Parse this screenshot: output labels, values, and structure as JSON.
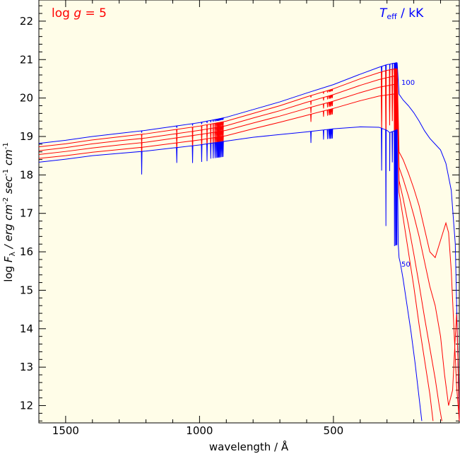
{
  "chart_data": {
    "type": "line",
    "xlabel": "wavelength / Å",
    "ylabel": {
      "prefix": "log ",
      "F": "F",
      "sub": "λ",
      "units": " / erg cm",
      "exp1": "-2",
      "mid": " sec",
      "exp2": "-1",
      "mid2": " cm",
      "exp3": "-1"
    },
    "xlim": [
      1600,
      30
    ],
    "ylim": [
      11.55,
      22.55
    ],
    "x_ticks": [
      1500,
      1000,
      500
    ],
    "y_ticks": [
      12,
      13,
      14,
      15,
      16,
      17,
      18,
      19,
      20,
      21,
      22
    ],
    "annotation_logg": {
      "prefix": "log ",
      "g": "g",
      "suffix": " = 5",
      "color": "#ff0000"
    },
    "annotation_teff": {
      "T": "T",
      "sub": "eff",
      "suffix": " / kK",
      "color": "#0000ff"
    },
    "curve_label_top": "100",
    "curve_label_bottom": "50",
    "background": "#fffde8",
    "colors": {
      "hot_and_cool": "#0000ff",
      "intermediate": "#ff0000"
    },
    "series": [
      {
        "color": "#0000ff",
        "x": [
          1600,
          1500,
          1400,
          1300,
          1200,
          1100,
          1000,
          900,
          800,
          700,
          600,
          500,
          400,
          330,
          300,
          290,
          280,
          270,
          265,
          262,
          255,
          240,
          220,
          200,
          180,
          160,
          140,
          120,
          100,
          80,
          60,
          45,
          30
        ],
        "y": [
          18.82,
          18.9,
          19.0,
          19.08,
          19.16,
          19.26,
          19.36,
          19.5,
          19.7,
          19.9,
          20.13,
          20.35,
          20.62,
          20.8,
          20.87,
          20.88,
          20.9,
          20.91,
          20.92,
          20.92,
          20.1,
          19.95,
          19.8,
          19.62,
          19.4,
          19.15,
          18.95,
          18.8,
          18.65,
          18.3,
          17.6,
          16.2,
          11.6
        ]
      },
      {
        "color": "#ff0000",
        "x": [
          1600,
          1500,
          1400,
          1300,
          1200,
          1100,
          1000,
          900,
          800,
          700,
          600,
          500,
          400,
          330,
          300,
          270,
          262,
          255,
          240,
          220,
          200,
          180,
          160,
          140,
          120,
          100,
          80,
          70,
          60,
          50,
          40,
          30
        ],
        "y": [
          18.73,
          18.81,
          18.91,
          18.99,
          19.07,
          19.17,
          19.27,
          19.4,
          19.6,
          19.8,
          20.03,
          20.24,
          20.5,
          20.66,
          20.72,
          20.76,
          20.76,
          18.6,
          18.4,
          18.05,
          17.65,
          17.2,
          16.6,
          16.0,
          15.85,
          16.3,
          16.75,
          16.5,
          15.5,
          14.0,
          12.5,
          11.6
        ]
      },
      {
        "color": "#ff0000",
        "x": [
          1600,
          1500,
          1400,
          1300,
          1200,
          1100,
          1000,
          900,
          800,
          700,
          600,
          500,
          400,
          330,
          300,
          270,
          262,
          255,
          240,
          220,
          200,
          180,
          160,
          140,
          120,
          100,
          85,
          70,
          55,
          45,
          40,
          35,
          30
        ],
        "y": [
          18.63,
          18.71,
          18.81,
          18.89,
          18.96,
          19.06,
          19.16,
          19.28,
          19.48,
          19.67,
          19.89,
          20.09,
          20.33,
          20.48,
          20.53,
          20.58,
          20.58,
          18.2,
          17.9,
          17.45,
          16.95,
          16.4,
          15.75,
          15.1,
          14.6,
          13.8,
          12.8,
          12.0,
          12.4,
          13.8,
          14.38,
          13.2,
          11.6
        ]
      },
      {
        "color": "#ff0000",
        "x": [
          1600,
          1500,
          1400,
          1300,
          1200,
          1100,
          1000,
          900,
          800,
          700,
          600,
          500,
          400,
          330,
          300,
          270,
          262,
          255,
          240,
          220,
          200,
          180,
          160,
          140,
          120,
          105,
          95
        ],
        "y": [
          18.53,
          18.61,
          18.7,
          18.78,
          18.85,
          18.95,
          19.05,
          19.16,
          19.35,
          19.53,
          19.73,
          19.92,
          20.14,
          20.28,
          20.32,
          20.36,
          20.36,
          17.85,
          17.4,
          16.7,
          15.95,
          15.15,
          14.3,
          13.5,
          12.7,
          12.0,
          11.6
        ]
      },
      {
        "color": "#ff0000",
        "x": [
          1600,
          1500,
          1400,
          1300,
          1200,
          1100,
          1000,
          900,
          800,
          700,
          600,
          500,
          400,
          330,
          300,
          270,
          262,
          255,
          240,
          220,
          200,
          180,
          160,
          140,
          128
        ],
        "y": [
          18.43,
          18.5,
          18.59,
          18.66,
          18.73,
          18.82,
          18.91,
          19.02,
          19.2,
          19.37,
          19.55,
          19.73,
          19.93,
          20.05,
          20.08,
          20.11,
          20.11,
          17.55,
          16.9,
          16.0,
          15.1,
          14.1,
          13.2,
          12.3,
          11.6
        ]
      },
      {
        "color": "#0000ff",
        "x": [
          1600,
          1500,
          1400,
          1300,
          1200,
          1100,
          1000,
          900,
          800,
          700,
          600,
          500,
          400,
          330,
          300,
          290,
          275,
          262,
          258,
          255,
          250,
          240,
          225,
          210,
          195,
          180,
          170
        ],
        "y": [
          18.33,
          18.41,
          18.5,
          18.56,
          18.62,
          18.7,
          18.78,
          18.88,
          18.98,
          19.05,
          19.12,
          19.2,
          19.25,
          19.24,
          19.16,
          19.1,
          19.14,
          19.18,
          16.2,
          15.85,
          15.7,
          15.3,
          14.6,
          13.9,
          13.1,
          12.2,
          11.6
        ]
      }
    ],
    "absorption_lines": [
      {
        "x": 1216,
        "depth": [
          0.05,
          0.1,
          0.12,
          0.14,
          0.15,
          0.6
        ]
      },
      {
        "x": 1085,
        "depth": [
          0.05,
          0.12,
          0.14,
          0.16,
          0.18,
          0.4
        ]
      },
      {
        "x": 1026,
        "depth": [
          0.05,
          0.14,
          0.16,
          0.18,
          0.2,
          0.45
        ]
      },
      {
        "x": 992,
        "depth": [
          0.05,
          0.14,
          0.16,
          0.18,
          0.2,
          0.45
        ]
      },
      {
        "x": 972,
        "depth": [
          0.05,
          0.14,
          0.16,
          0.18,
          0.2,
          0.45
        ]
      },
      {
        "x": 958,
        "depth": [
          0.05,
          0.14,
          0.16,
          0.18,
          0.2,
          0.4
        ]
      },
      {
        "x": 949,
        "depth": [
          0.05,
          0.14,
          0.16,
          0.18,
          0.2,
          0.4
        ]
      },
      {
        "x": 942,
        "depth": [
          0.05,
          0.14,
          0.16,
          0.18,
          0.2,
          0.4
        ]
      },
      {
        "x": 937,
        "depth": [
          0.05,
          0.14,
          0.16,
          0.18,
          0.2,
          0.4
        ]
      },
      {
        "x": 933,
        "depth": [
          0.05,
          0.14,
          0.16,
          0.18,
          0.2,
          0.4
        ]
      },
      {
        "x": 930,
        "depth": [
          0.05,
          0.14,
          0.16,
          0.18,
          0.2,
          0.4
        ]
      },
      {
        "x": 927,
        "depth": [
          0.05,
          0.14,
          0.16,
          0.18,
          0.2,
          0.4
        ]
      },
      {
        "x": 924,
        "depth": [
          0.05,
          0.14,
          0.16,
          0.18,
          0.2,
          0.4
        ]
      },
      {
        "x": 920,
        "depth": [
          0.05,
          0.14,
          0.16,
          0.18,
          0.2,
          0.4
        ]
      },
      {
        "x": 916,
        "depth": [
          0.05,
          0.14,
          0.16,
          0.18,
          0.2,
          0.4
        ]
      },
      {
        "x": 912,
        "depth": [
          0.05,
          0.14,
          0.16,
          0.18,
          0.2,
          0.4
        ]
      },
      {
        "x": 584,
        "depth": [
          0.0,
          0.05,
          0.1,
          0.15,
          0.2,
          0.3
        ]
      },
      {
        "x": 537,
        "depth": [
          0.0,
          0.05,
          0.08,
          0.12,
          0.15,
          0.25
        ]
      },
      {
        "x": 522,
        "depth": [
          0.0,
          0.05,
          0.08,
          0.12,
          0.15,
          0.25
        ]
      },
      {
        "x": 516,
        "depth": [
          0.0,
          0.05,
          0.08,
          0.12,
          0.15,
          0.25
        ]
      },
      {
        "x": 512,
        "depth": [
          0.0,
          0.05,
          0.08,
          0.12,
          0.15,
          0.25
        ]
      },
      {
        "x": 508,
        "depth": [
          0.0,
          0.05,
          0.08,
          0.12,
          0.15,
          0.25
        ]
      },
      {
        "x": 504,
        "depth": [
          0.0,
          0.05,
          0.08,
          0.12,
          0.15,
          0.25
        ]
      },
      {
        "x": 320,
        "depth": [
          0.3,
          0.6,
          0.8,
          0.9,
          1.0,
          1.1
        ]
      },
      {
        "x": 304,
        "depth": [
          0.6,
          1.0,
          1.2,
          1.3,
          1.4,
          2.5
        ]
      },
      {
        "x": 290,
        "depth": [
          0.3,
          0.5,
          0.6,
          0.7,
          0.8,
          1.0
        ]
      },
      {
        "x": 280,
        "depth": [
          0.2,
          0.4,
          0.5,
          0.6,
          0.7,
          0.8
        ]
      },
      {
        "x": 272,
        "depth": [
          0.8,
          1.5,
          1.8,
          2.0,
          2.2,
          3.0
        ]
      },
      {
        "x": 268,
        "depth": [
          0.8,
          1.5,
          1.8,
          2.0,
          2.2,
          3.0
        ]
      },
      {
        "x": 265,
        "depth": [
          0.8,
          1.5,
          1.8,
          2.0,
          2.2,
          3.0
        ]
      },
      {
        "x": 263,
        "depth": [
          0.8,
          1.5,
          1.8,
          2.0,
          2.2,
          3.0
        ]
      }
    ]
  }
}
